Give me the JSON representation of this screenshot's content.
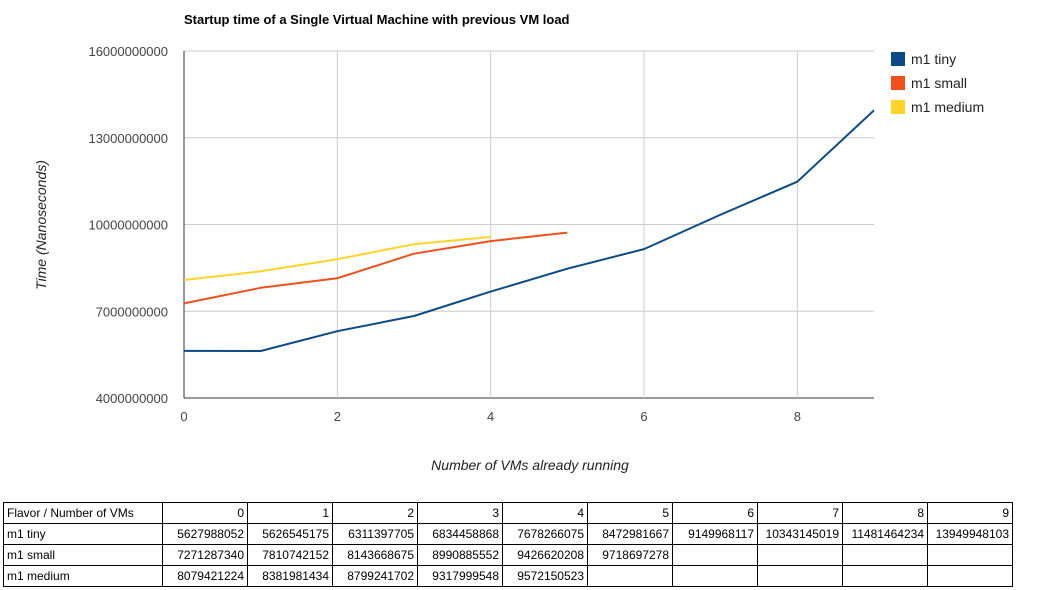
{
  "chart_data": {
    "type": "line",
    "title": "Startup time of a Single Virtual Machine with previous VM load",
    "xlabel": "Number of VMs already running",
    "ylabel": "Time (Nanoseconds)",
    "xlim": [
      0,
      9
    ],
    "ylim": [
      4000000000,
      16000000000
    ],
    "x_ticks": [
      "0",
      "2",
      "4",
      "6",
      "8"
    ],
    "x_tick_values": [
      0,
      2,
      4,
      6,
      8
    ],
    "y_ticks": [
      "4000000000",
      "7000000000",
      "10000000000",
      "13000000000",
      "16000000000"
    ],
    "y_tick_values": [
      4000000000,
      7000000000,
      10000000000,
      13000000000,
      16000000000
    ],
    "grid": true,
    "legend_position": "right",
    "series": [
      {
        "name": "m1 tiny",
        "color": "#0b4a87",
        "x": [
          0,
          1,
          2,
          3,
          4,
          5,
          6,
          7,
          8,
          9
        ],
        "values": [
          5627988052,
          5626545175,
          6311397705,
          6834458868,
          7678266075,
          8472981667,
          9149968117,
          10343145019,
          11481464234,
          13949948103
        ]
      },
      {
        "name": "m1 small",
        "color": "#f0501e",
        "x": [
          0,
          1,
          2,
          3,
          4,
          5
        ],
        "values": [
          7271287340,
          7810742152,
          8143668675,
          8990885552,
          9426620208,
          9718697278
        ]
      },
      {
        "name": "m1 medium",
        "color": "#ffd42a",
        "x": [
          0,
          1,
          2,
          3,
          4
        ],
        "values": [
          8079421224,
          8381981434,
          8799241702,
          9317999548,
          9572150523
        ]
      }
    ]
  },
  "table": {
    "corner": "Flavor / Number of VMs",
    "columns": [
      "0",
      "1",
      "2",
      "3",
      "4",
      "5",
      "6",
      "7",
      "8",
      "9"
    ],
    "rows": [
      {
        "label": "m1 tiny",
        "cells": [
          "5627988052",
          "5626545175",
          "6311397705",
          "6834458868",
          "7678266075",
          "8472981667",
          "9149968117",
          "10343145019",
          "11481464234",
          "13949948103"
        ]
      },
      {
        "label": "m1 small",
        "cells": [
          "7271287340",
          "7810742152",
          "8143668675",
          "8990885552",
          "9426620208",
          "9718697278",
          "",
          "",
          "",
          ""
        ]
      },
      {
        "label": "m1 medium",
        "cells": [
          "8079421224",
          "8381981434",
          "8799241702",
          "9317999548",
          "9572150523",
          "",
          "",
          "",
          "",
          ""
        ]
      }
    ]
  }
}
